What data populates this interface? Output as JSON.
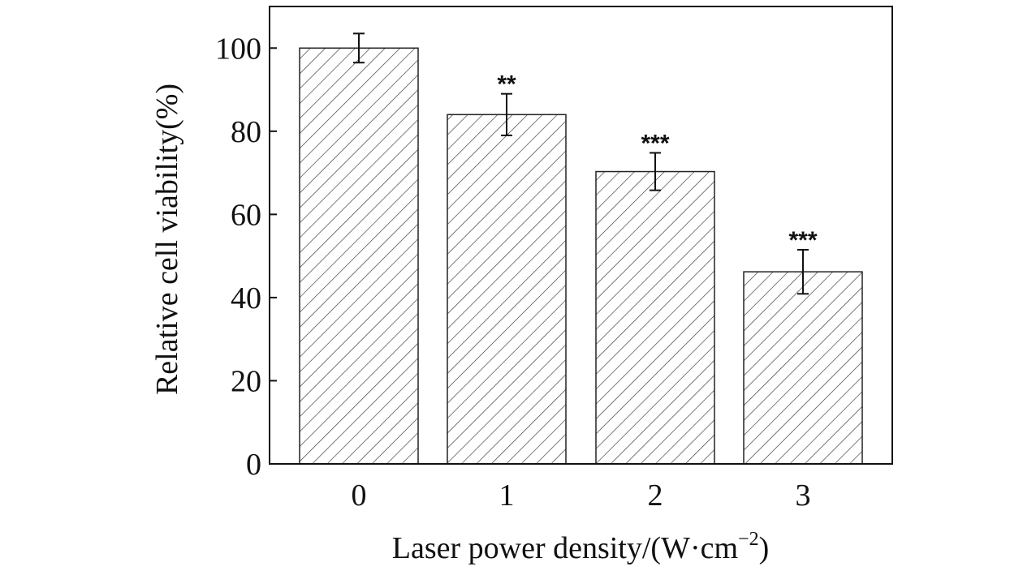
{
  "chart_data": {
    "type": "bar",
    "categories": [
      "0",
      "1",
      "2",
      "3"
    ],
    "values": [
      100,
      84,
      70.3,
      46.2
    ],
    "errors": [
      3.5,
      5,
      4.5,
      5.3
    ],
    "significance": [
      "",
      "**",
      "***",
      "***"
    ],
    "xlabel_main": "Laser power density/(W·cm",
    "xlabel_sup": "−2",
    "xlabel_tail": ")",
    "ylabel": "Relative cell viability(%)",
    "yticks": [
      "0",
      "20",
      "40",
      "60",
      "80",
      "100"
    ],
    "ylim": [
      0,
      110
    ],
    "bar_fill": "hatched",
    "bar_color": "#333333",
    "grid": false,
    "legend": "none"
  }
}
